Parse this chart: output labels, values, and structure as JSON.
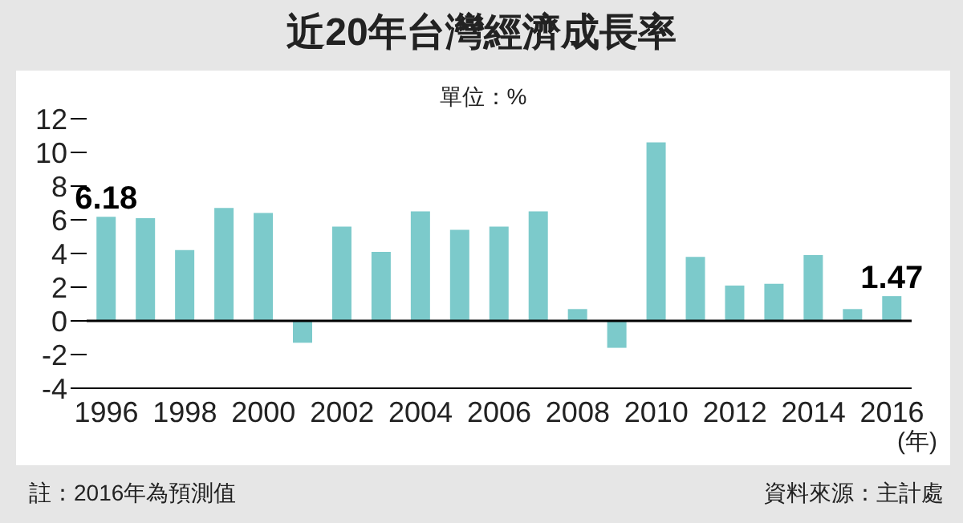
{
  "chart_data": {
    "type": "bar",
    "title": "近20年台灣經濟成長率",
    "subtitle": "單位：%",
    "xlabel": "(年)",
    "categories": [
      "1996",
      null,
      "1998",
      null,
      "2000",
      null,
      "2002",
      null,
      "2004",
      null,
      "2006",
      null,
      "2008",
      null,
      "2010",
      null,
      "2012",
      null,
      "2014",
      null,
      "2016"
    ],
    "values": [
      6.18,
      6.1,
      4.2,
      6.7,
      6.4,
      -1.3,
      5.6,
      4.1,
      6.5,
      5.4,
      5.6,
      6.5,
      0.7,
      -1.6,
      10.6,
      3.8,
      2.1,
      2.2,
      3.9,
      0.7,
      1.47
    ],
    "value_labels": [
      "6.18",
      null,
      null,
      null,
      null,
      null,
      null,
      null,
      null,
      null,
      null,
      null,
      null,
      null,
      null,
      null,
      null,
      null,
      null,
      null,
      "1.47"
    ],
    "color": "#7ccacb",
    "ylim": [
      -4,
      12
    ],
    "yticks": [
      -4,
      -2,
      0,
      2,
      4,
      6,
      8,
      10,
      12
    ],
    "grid": false,
    "ref_lines": [
      {
        "axis": "y",
        "value": 0,
        "color": "#000000"
      }
    ],
    "annotations": [
      "註：2016年為預測值",
      "資料來源：主計處"
    ]
  }
}
